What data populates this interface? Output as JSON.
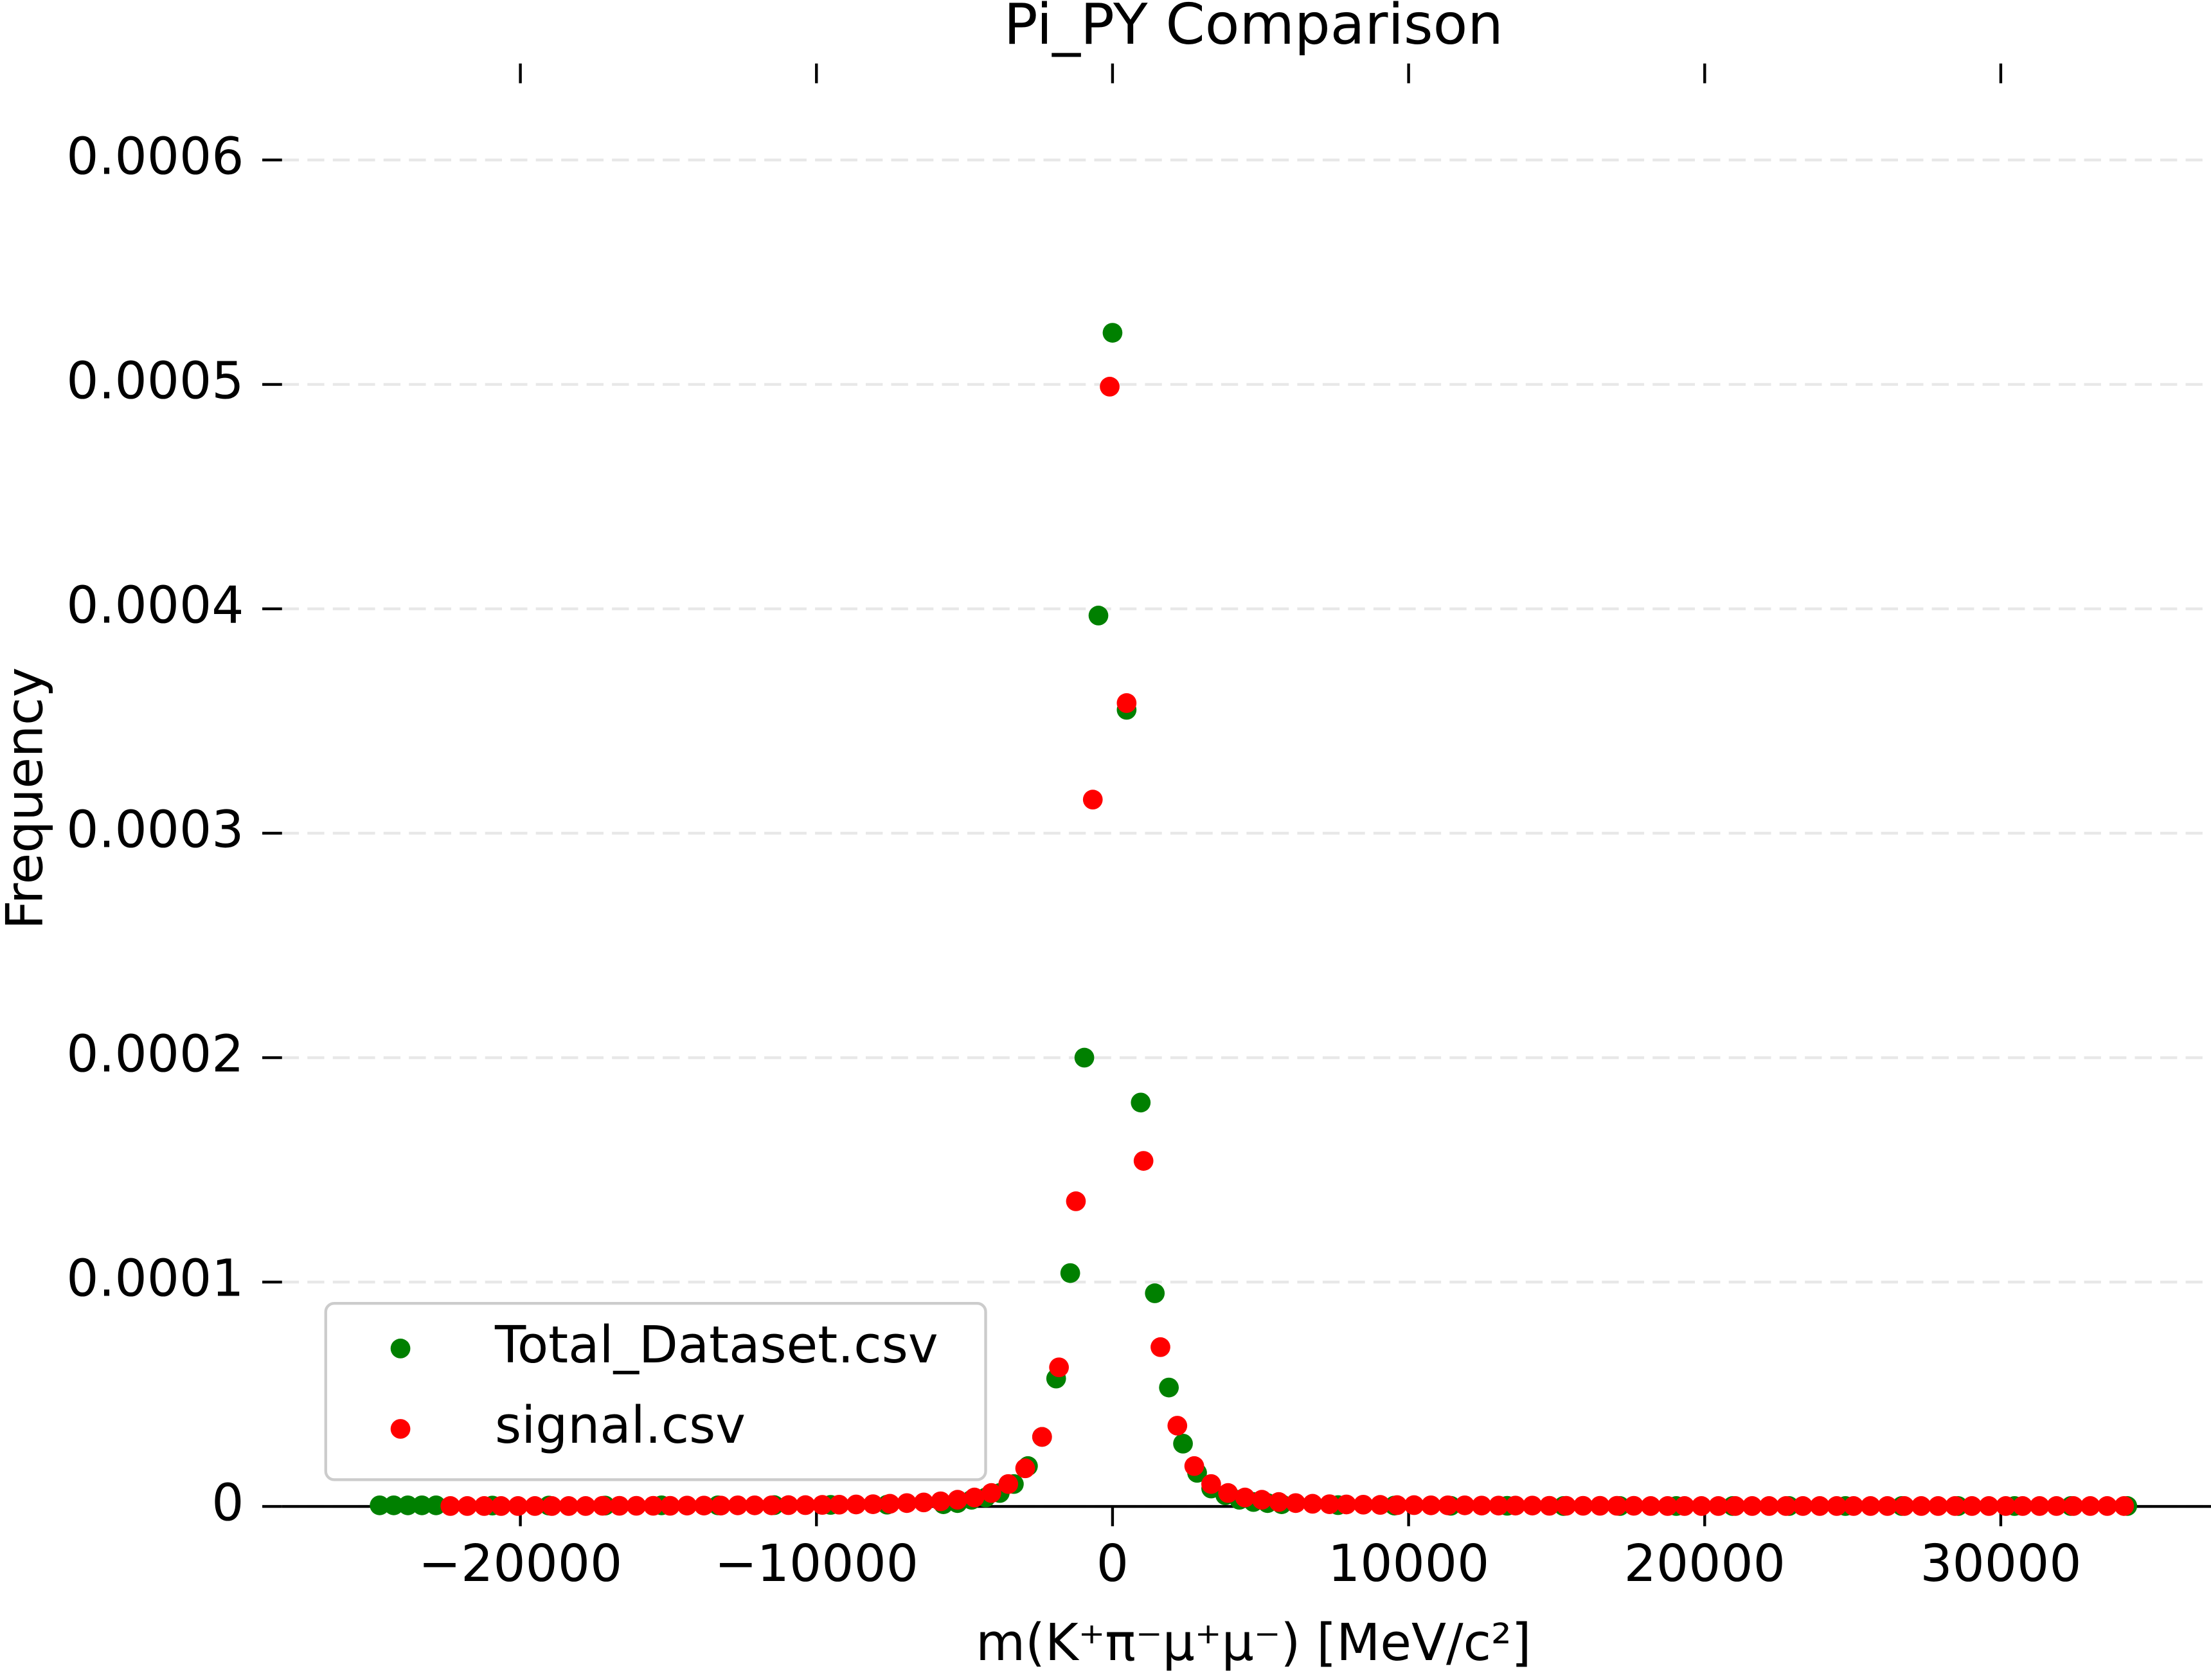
{
  "chart_data": {
    "type": "scatter",
    "title": "Pi_PY Comparison",
    "x_label": "m(K⁺π⁻μ⁺μ⁻) [MeV/c²]",
    "y_label": "Frequency",
    "xlim": [
      -28050,
      37100
    ],
    "ylim": [
      0,
      0.000643
    ],
    "xticks": [
      {
        "value": -20000,
        "label": "−20000"
      },
      {
        "value": -10000,
        "label": "−10000"
      },
      0,
      10000,
      20000,
      30000
    ],
    "yticks": [
      0,
      0.0001,
      0.0002,
      0.0003,
      0.0004,
      0.0005,
      0.0006
    ],
    "grid": true,
    "legend": "lower left",
    "series": [
      {
        "name": "Total_Dataset.csv",
        "color": "#008000",
        "x": [
          -24752,
          -24276,
          -23800,
          -23324,
          -22848,
          -20944,
          -19040,
          -17136,
          -15232,
          -13328,
          -11424,
          -9520,
          -7616,
          -5712,
          -5236,
          -4760,
          -4284,
          -3808,
          -3332,
          -2856,
          -2380,
          -1904,
          -1428,
          -952,
          -476,
          0,
          476,
          952,
          1428,
          1904,
          2380,
          2856,
          3332,
          3808,
          4284,
          4760,
          5236,
          5712,
          7616,
          9520,
          11424,
          13328,
          15232,
          17136,
          19040,
          20944,
          22848,
          24752,
          26656,
          28560,
          30464,
          32368,
          34272
        ],
        "values": [
          5e-07,
          5e-07,
          5e-07,
          5e-07,
          5e-07,
          4e-07,
          4e-07,
          4e-07,
          5e-07,
          5e-07,
          6e-07,
          7e-07,
          8e-07,
          1e-06,
          1.5e-06,
          3e-06,
          4e-06,
          6e-06,
          1e-05,
          1.8e-05,
          3.1e-05,
          5.7e-05,
          0.000104,
          0.0002,
          0.000397,
          0.000523,
          0.000355,
          0.00018,
          9.5e-05,
          5.3e-05,
          2.8e-05,
          1.5e-05,
          8e-06,
          5e-06,
          3e-06,
          2e-06,
          1.5e-06,
          1e-06,
          6e-07,
          4e-07,
          3e-07,
          3e-07,
          2e-07,
          2e-07,
          2e-07,
          2e-07,
          2e-07,
          2e-07,
          2e-07,
          2e-07,
          2e-07,
          2e-07,
          2e-07
        ]
      },
      {
        "name": "signal.csv",
        "color": "#ff0000",
        "x": [
          -22364,
          -21793,
          -21222,
          -20651,
          -20080,
          -19509,
          -18938,
          -18367,
          -17796,
          -17225,
          -16654,
          -16083,
          -15512,
          -14941,
          -14370,
          -13799,
          -13228,
          -12657,
          -12086,
          -11515,
          -10944,
          -10373,
          -9802,
          -9231,
          -8660,
          -8089,
          -7518,
          -6947,
          -6376,
          -5805,
          -5234,
          -4663,
          -4092,
          -3521,
          -2950,
          -2379,
          -1808,
          -1237,
          -666,
          -95,
          476,
          1047,
          1618,
          2189,
          2760,
          3331,
          3902,
          4473,
          5044,
          5615,
          6186,
          6757,
          7328,
          7899,
          8470,
          9041,
          9612,
          10183,
          10754,
          11325,
          11896,
          12467,
          13038,
          13609,
          14180,
          14751,
          15322,
          15893,
          16464,
          17035,
          17606,
          18177,
          18748,
          19319,
          19890,
          20461,
          21032,
          21603,
          22174,
          22745,
          23316,
          23887,
          24458,
          25029,
          25600,
          26171,
          26742,
          27313,
          27884,
          28455,
          29026,
          29597,
          30168,
          30739,
          31310,
          31881,
          32452,
          33023,
          33594,
          34165
        ],
        "values": [
          2e-07,
          2e-07,
          2e-07,
          2e-07,
          2e-07,
          2e-07,
          2e-07,
          2e-07,
          2e-07,
          3e-07,
          3e-07,
          3e-07,
          3e-07,
          3e-07,
          4e-07,
          4e-07,
          4e-07,
          5e-07,
          5e-07,
          5e-07,
          6e-07,
          6e-07,
          7e-07,
          8e-07,
          9e-07,
          1e-06,
          1.2e-06,
          1.5e-06,
          1.8e-06,
          2.3e-06,
          3e-06,
          4e-06,
          6e-06,
          1e-05,
          1.7e-05,
          3.1e-05,
          6.2e-05,
          0.000136,
          0.000315,
          0.000499,
          0.000358,
          0.000154,
          7.1e-05,
          3.6e-05,
          1.8e-05,
          1e-05,
          6e-06,
          4e-06,
          3e-06,
          2e-06,
          1.5e-06,
          1.2e-06,
          1e-06,
          9e-07,
          8e-07,
          7e-07,
          6e-07,
          6e-07,
          5e-07,
          5e-07,
          5e-07,
          4e-07,
          4e-07,
          4e-07,
          4e-07,
          3e-07,
          3e-07,
          3e-07,
          3e-07,
          3e-07,
          3e-07,
          2e-07,
          2e-07,
          2e-07,
          2e-07,
          2e-07,
          2e-07,
          2e-07,
          2e-07,
          2e-07,
          2e-07,
          2e-07,
          2e-07,
          2e-07,
          2e-07,
          2e-07,
          2e-07,
          2e-07,
          2e-07,
          2e-07,
          2e-07,
          2e-07,
          2e-07,
          2e-07,
          2e-07,
          2e-07,
          2e-07,
          2e-07,
          2e-07,
          2e-07
        ]
      }
    ]
  }
}
